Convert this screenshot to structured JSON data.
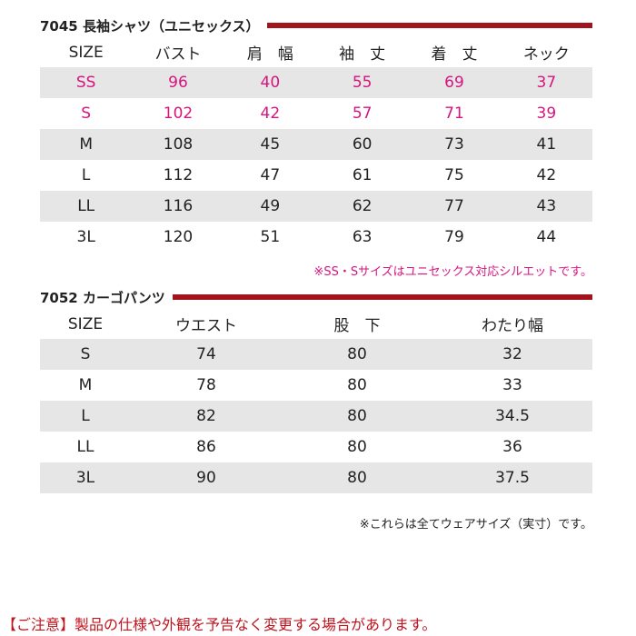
{
  "table1": {
    "title": "7045 長袖シャツ（ユニセックス）",
    "headers": [
      "SIZE",
      "バスト",
      "肩　幅",
      "袖　丈",
      "着　丈",
      "ネック"
    ],
    "rows": [
      [
        "SS",
        "96",
        "40",
        "55",
        "69",
        "37"
      ],
      [
        "S",
        "102",
        "42",
        "57",
        "71",
        "39"
      ],
      [
        "M",
        "108",
        "45",
        "60",
        "73",
        "41"
      ],
      [
        "L",
        "112",
        "47",
        "61",
        "75",
        "42"
      ],
      [
        "LL",
        "116",
        "49",
        "62",
        "77",
        "43"
      ],
      [
        "3L",
        "120",
        "51",
        "63",
        "79",
        "44"
      ]
    ],
    "note": "※SS・Sサイズはユニセックス対応シルエットです。"
  },
  "table2": {
    "title": "7052 カーゴパンツ",
    "headers": [
      "SIZE",
      "ウエスト",
      "股　下",
      "わたり幅"
    ],
    "rows": [
      [
        "S",
        "74",
        "80",
        "32"
      ],
      [
        "M",
        "78",
        "80",
        "33"
      ],
      [
        "L",
        "82",
        "80",
        "34.5"
      ],
      [
        "LL",
        "86",
        "80",
        "36"
      ],
      [
        "3L",
        "90",
        "80",
        "37.5"
      ]
    ],
    "note": "※これらは全てウェアサイズ（実寸）です。"
  },
  "caution": "【ご注意】製品の仕様や外観を予告なく変更する場合があります。",
  "colors": {
    "accent_bar": "#a1141d",
    "highlight_text": "#d6157e",
    "row_shade": "#e6e6e6",
    "caution_text": "#c0141f"
  }
}
